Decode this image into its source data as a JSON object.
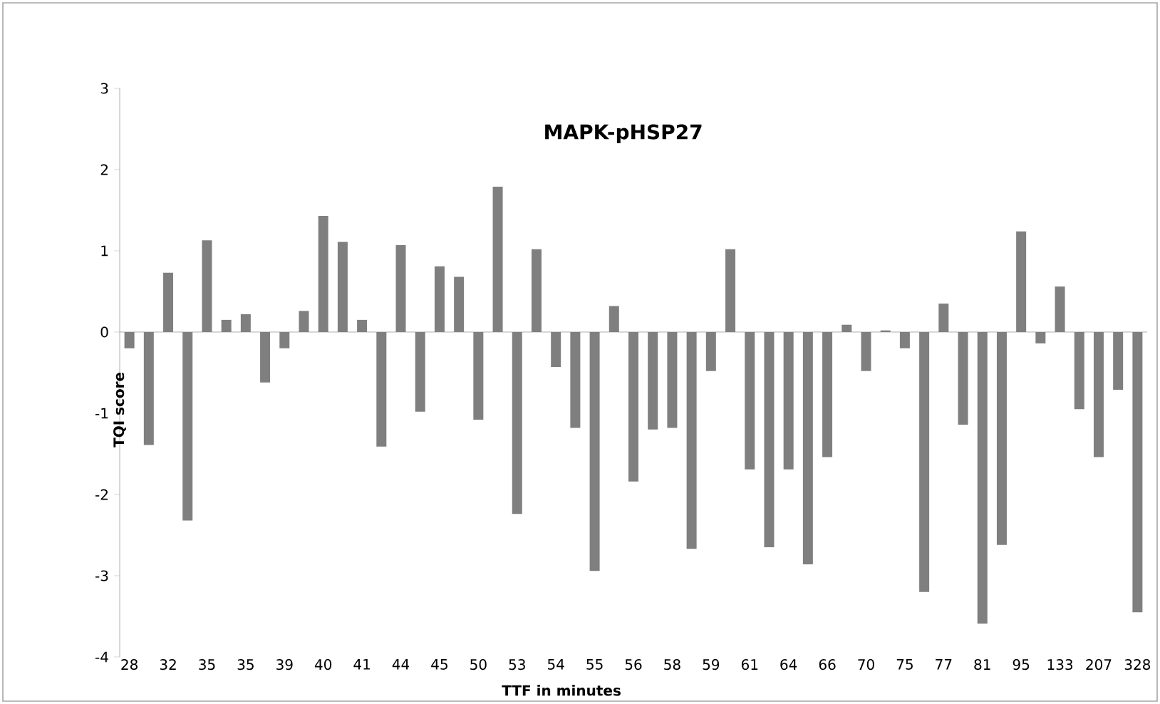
{
  "chart_data": {
    "type": "bar",
    "title": "MAPK-pHSP27",
    "xlabel": "TTF in minutes",
    "ylabel": "TQI score",
    "categories": [
      "28",
      null,
      "32",
      null,
      "35",
      null,
      "35",
      null,
      "39",
      null,
      "40",
      null,
      "41",
      null,
      "44",
      null,
      "45",
      null,
      "50",
      null,
      "53",
      null,
      "54",
      null,
      "55",
      null,
      "56",
      null,
      "58",
      null,
      "59",
      null,
      "61",
      null,
      "64",
      null,
      "66",
      null,
      "70",
      null,
      "75",
      null,
      "77",
      null,
      "81",
      null,
      "95",
      null,
      "133",
      null,
      "207",
      null,
      "328"
    ],
    "values": [
      -0.2,
      -1.39,
      0.73,
      -2.32,
      1.13,
      0.15,
      0.22,
      -0.62,
      -0.2,
      0.26,
      1.43,
      1.11,
      0.15,
      -1.41,
      1.07,
      -0.98,
      0.81,
      0.68,
      -1.08,
      1.79,
      -2.24,
      1.02,
      -0.43,
      -1.18,
      -2.94,
      0.32,
      -1.84,
      -1.2,
      -1.18,
      -2.67,
      -0.48,
      1.02,
      -1.69,
      -2.65,
      -1.69,
      -2.86,
      -1.54,
      0.09,
      -0.48,
      0.02,
      -0.2,
      -3.2,
      0.35,
      -1.14,
      -3.59,
      -2.62,
      1.24,
      -0.14,
      0.56,
      -0.95,
      -1.54,
      -0.71,
      -3.45
    ],
    "color": "#7f7f7f",
    "ylim": [
      -4,
      3
    ],
    "yticks": [
      -4,
      -3,
      -2,
      -1,
      0,
      1,
      2,
      3
    ]
  }
}
